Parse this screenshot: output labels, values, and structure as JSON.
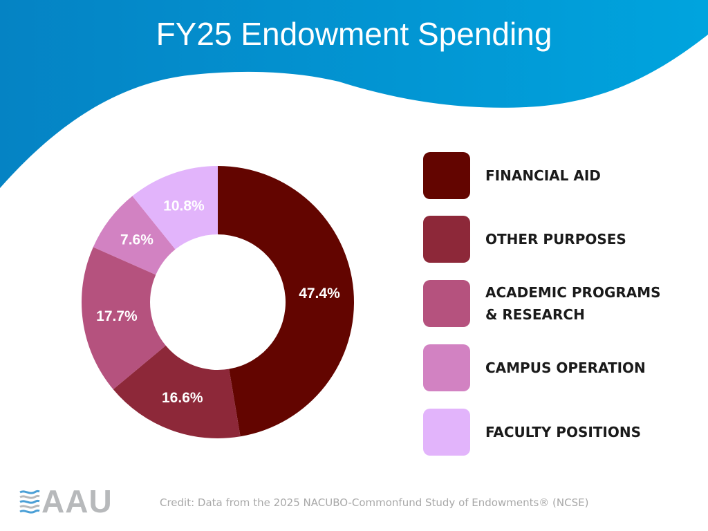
{
  "header": {
    "title": "FY25 Endowment Spending"
  },
  "colors": {
    "header_light": "#00a4de",
    "header_dark": "#0583c4",
    "background": "#ffffff"
  },
  "chart_data": {
    "type": "pie",
    "variant": "donut",
    "title": "FY25 Endowment Spending",
    "labels": [
      "FINANCIAL AID",
      "OTHER PURPOSES",
      "ACADEMIC PROGRAMS & RESEARCH",
      "CAMPUS OPERATION",
      "FACULTY POSITIONS"
    ],
    "values": [
      47.4,
      16.6,
      17.7,
      7.6,
      10.8
    ],
    "value_labels": [
      "47.4%",
      "16.6%",
      "17.7%",
      "7.6%",
      "10.8%"
    ],
    "colors": [
      "#630500",
      "#8d2839",
      "#b5527e",
      "#d282c2",
      "#e2b4fb"
    ],
    "start": "12 o'clock",
    "direction": "clockwise",
    "legend_position": "right"
  },
  "legend": {
    "items": [
      {
        "label": "FINANCIAL AID",
        "color": "#630500"
      },
      {
        "label": "OTHER PURPOSES",
        "color": "#8d2839"
      },
      {
        "label": "ACADEMIC PROGRAMS\n& RESEARCH",
        "color": "#b5527e"
      },
      {
        "label": "CAMPUS OPERATION",
        "color": "#d282c2"
      },
      {
        "label": "FACULTY POSITIONS",
        "color": "#e2b4fb"
      }
    ]
  },
  "footer": {
    "logo_text": "AAU",
    "logo_icon": "aau-wave-icon",
    "credit": "Credit: Data from the 2025 NACUBO-Commonfund Study of Endowments® (NCSE)"
  }
}
